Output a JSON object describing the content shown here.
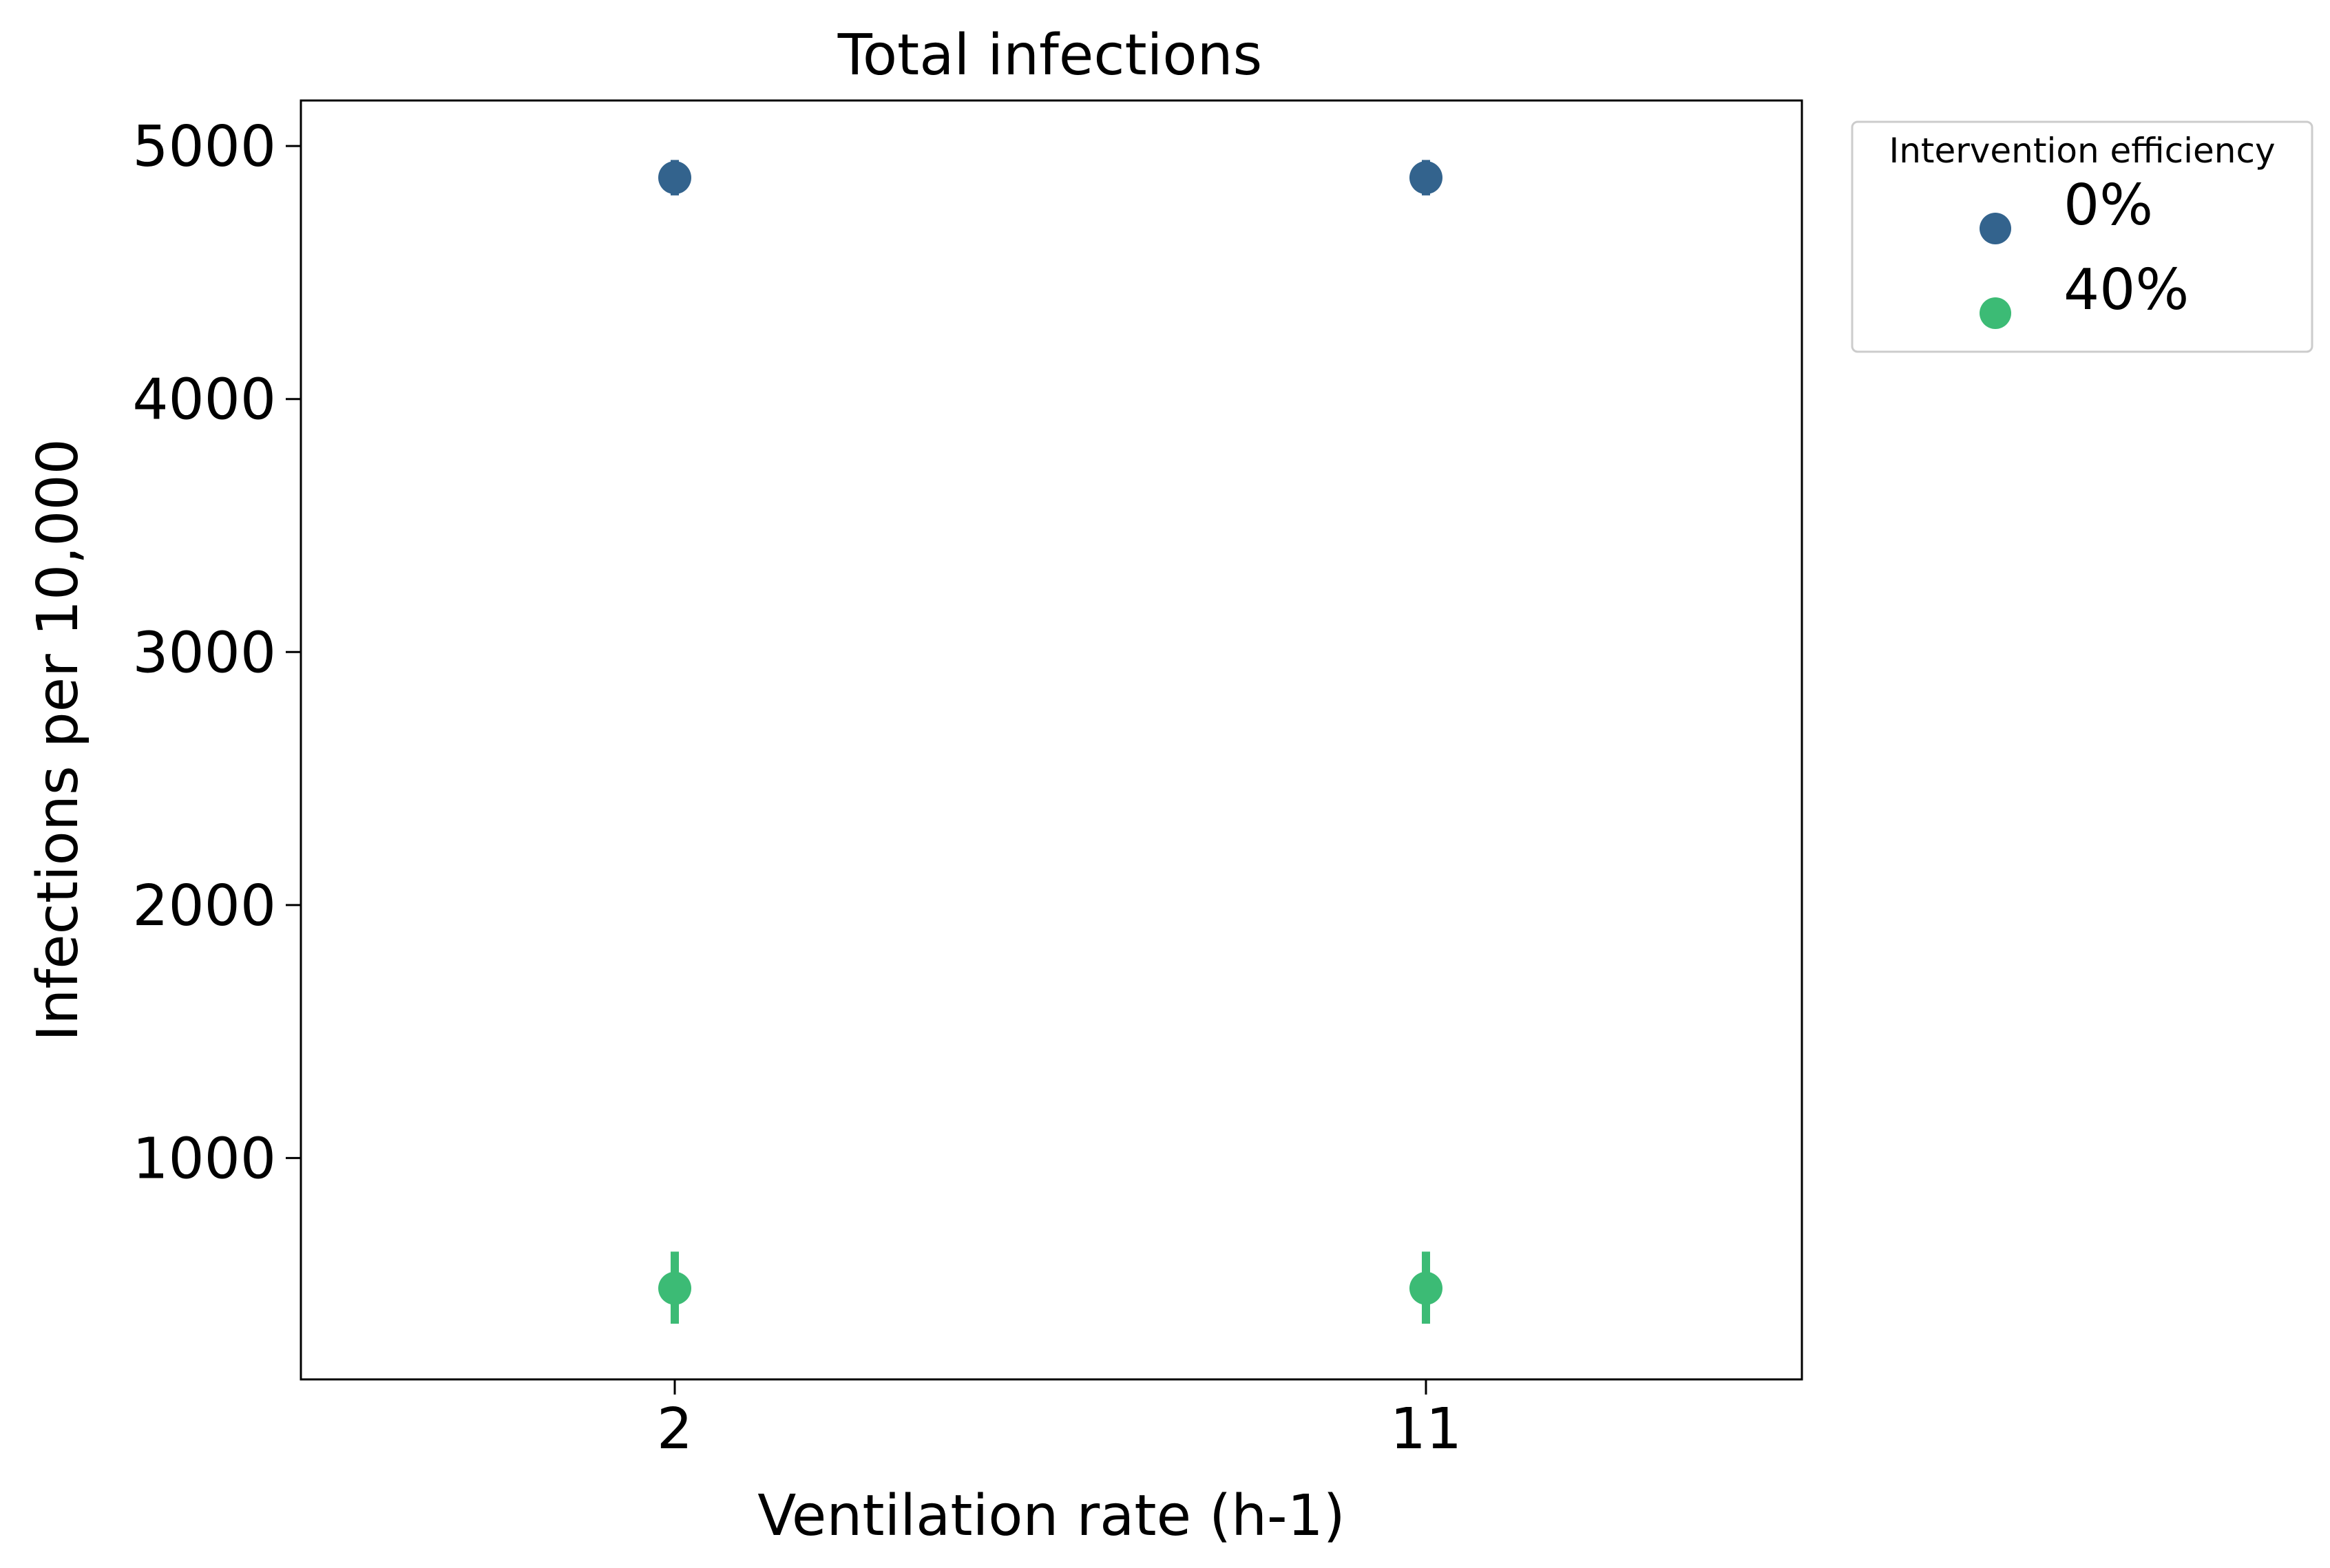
{
  "chart_data": {
    "type": "scatter",
    "title": "Total infections",
    "xlabel": "Ventilation rate (h-1)",
    "ylabel": "Infections per 10,000",
    "categories": [
      "2",
      "11"
    ],
    "ylim": [
      125,
      5180
    ],
    "yticks": [
      1000,
      2000,
      3000,
      4000,
      5000
    ],
    "ytick_labels": [
      "1000",
      "2000",
      "3000",
      "4000",
      "5000"
    ],
    "grid": false,
    "legend": {
      "title": "Intervention efficiency",
      "placement": "outside top-right"
    },
    "series": [
      {
        "name": "0%",
        "color": "#33638d",
        "values": [
          4875,
          4875
        ],
        "err_low": [
          4805,
          4805
        ],
        "err_high": [
          4945,
          4945
        ]
      },
      {
        "name": "40%",
        "color": "#3cbb75",
        "values": [
          485,
          485
        ],
        "err_low": [
          345,
          345
        ],
        "err_high": [
          630,
          630
        ]
      }
    ]
  }
}
